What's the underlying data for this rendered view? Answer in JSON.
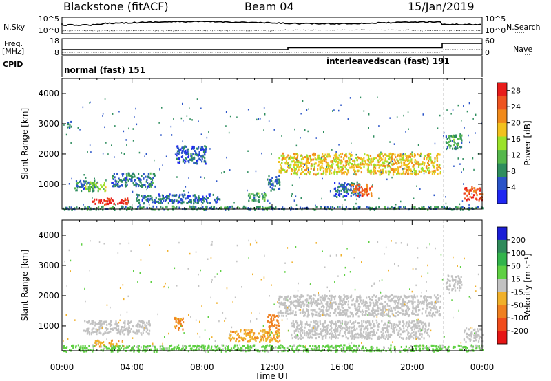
{
  "header": {
    "station": "Blackstone (fitACF)",
    "beam": "Beam 04",
    "date": "15/Jan/2019"
  },
  "top_panels": {
    "nsky_label": "N.Sky",
    "nsky_ticks": [
      "10^5",
      "10^0"
    ],
    "nsearch_label": "N.Search",
    "nsearch_ticks": [
      "10^5",
      "10^0"
    ],
    "freq_label": "Freq.",
    "freq_unit": "[MHz]",
    "freq_ticks": [
      "18",
      "8"
    ],
    "nave_label": "Nave",
    "nave_ticks": [
      "60",
      "0"
    ],
    "cpid_label": "CPID",
    "cpid_segments": [
      {
        "label": "normal (fast) 151",
        "start_hour": 0,
        "end_hour": 21.8
      },
      {
        "label": "interleavedscan (fast) 191",
        "start_hour": 21.8,
        "end_hour": 24
      }
    ]
  },
  "x_axis": {
    "label": "Time UT",
    "ticks": [
      "00:00",
      "04:00",
      "08:00",
      "12:00",
      "16:00",
      "20:00",
      "00:00"
    ],
    "range_hours": [
      0,
      24
    ]
  },
  "y_axis": {
    "label": "Slant Range [km]",
    "ticks": [
      "1000",
      "2000",
      "3000",
      "4000"
    ],
    "range_km": [
      180,
      4500
    ]
  },
  "power_scale": {
    "label": "Power [dB]",
    "ticks": [
      "4",
      "8",
      "12",
      "16",
      "20",
      "24",
      "28"
    ],
    "range": [
      0,
      30
    ],
    "colors": [
      "#1f27f2",
      "#2a54c8",
      "#2e8d5e",
      "#56b84c",
      "#9be22a",
      "#f2c11e",
      "#f08a1b",
      "#ee5420",
      "#e81c1a"
    ]
  },
  "velocity_scale": {
    "label": "Velocity [m s⁻¹]",
    "ticks": [
      "200",
      "100",
      "50",
      "15",
      "-15",
      "-50",
      "-100",
      "-200"
    ],
    "colors": [
      "#1b1ed6",
      "#2f8a5a",
      "#32b44b",
      "#5fd043",
      "#c2c2c2",
      "#f0b02a",
      "#f08020",
      "#f04c1c",
      "#e61515"
    ]
  },
  "chart_data": [
    {
      "type": "heatmap",
      "title": "Power",
      "xlabel": "Time UT",
      "ylabel": "Slant Range [km]",
      "xlim_hours": [
        0,
        24
      ],
      "ylim_km": [
        180,
        4500
      ],
      "colorbar": {
        "label": "Power [dB]",
        "ticks": [
          4,
          8,
          12,
          16,
          20,
          24,
          28
        ]
      },
      "echo_regions": [
        {
          "t_start": 0.2,
          "t_end": 0.5,
          "range_start": 2900,
          "range_end": 3100,
          "power_db": 6
        },
        {
          "t_start": 0.7,
          "t_end": 1.9,
          "range_start": 800,
          "range_end": 1150,
          "power_db": 7
        },
        {
          "t_start": 1.3,
          "t_end": 2.5,
          "range_start": 800,
          "range_end": 1100,
          "power_db": 14
        },
        {
          "t_start": 1.7,
          "t_end": 3.8,
          "range_start": 350,
          "range_end": 560,
          "power_db": 28
        },
        {
          "t_start": 2.8,
          "t_end": 5.3,
          "range_start": 950,
          "range_end": 1400,
          "power_db": 7
        },
        {
          "t_start": 4.2,
          "t_end": 9.0,
          "range_start": 400,
          "range_end": 700,
          "power_db": 6
        },
        {
          "t_start": 6.5,
          "t_end": 8.2,
          "range_start": 1700,
          "range_end": 2300,
          "power_db": 5
        },
        {
          "t_start": 10.6,
          "t_end": 11.6,
          "range_start": 450,
          "range_end": 750,
          "power_db": 10
        },
        {
          "t_start": 11.7,
          "t_end": 12.4,
          "range_start": 800,
          "range_end": 1300,
          "power_db": 6
        },
        {
          "t_start": 12.3,
          "t_end": 21.6,
          "range_start": 1350,
          "range_end": 2050,
          "power_db": 18
        },
        {
          "t_start": 15.5,
          "t_end": 17.0,
          "range_start": 600,
          "range_end": 1100,
          "power_db": 6
        },
        {
          "t_start": 16.5,
          "t_end": 17.7,
          "range_start": 650,
          "range_end": 1050,
          "power_db": 24
        },
        {
          "t_start": 21.9,
          "t_end": 22.8,
          "range_start": 2200,
          "range_end": 2700,
          "power_db": 10
        },
        {
          "t_start": 22.9,
          "t_end": 24.0,
          "range_start": 500,
          "range_end": 950,
          "power_db": 26
        },
        {
          "t_start": 0.0,
          "t_end": 24.0,
          "range_start": 180,
          "range_end": 300,
          "power_db": 8
        }
      ]
    },
    {
      "type": "heatmap",
      "title": "Velocity",
      "xlabel": "Time UT",
      "ylabel": "Slant Range [km]",
      "xlim_hours": [
        0,
        24
      ],
      "ylim_km": [
        180,
        4500
      ],
      "colorbar": {
        "label": "Velocity [m s⁻¹]",
        "ticks": [
          200,
          100,
          50,
          15,
          -15,
          -50,
          -100,
          -200
        ]
      },
      "echo_regions": [
        {
          "t_start": 1.2,
          "t_end": 5.0,
          "range_start": 750,
          "range_end": 1200,
          "velocity": 0
        },
        {
          "t_start": 1.8,
          "t_end": 3.5,
          "range_start": 350,
          "range_end": 550,
          "velocity": -40
        },
        {
          "t_start": 6.4,
          "t_end": 7.0,
          "range_start": 900,
          "range_end": 1300,
          "velocity": -60
        },
        {
          "t_start": 9.5,
          "t_end": 12.4,
          "range_start": 500,
          "range_end": 900,
          "velocity": -40
        },
        {
          "t_start": 11.7,
          "t_end": 12.4,
          "range_start": 900,
          "range_end": 1400,
          "velocity": -80
        },
        {
          "t_start": 12.3,
          "t_end": 21.6,
          "range_start": 1350,
          "range_end": 2050,
          "velocity": 0
        },
        {
          "t_start": 13.0,
          "t_end": 21.0,
          "range_start": 600,
          "range_end": 1200,
          "velocity": 0
        },
        {
          "t_start": 21.9,
          "t_end": 22.8,
          "range_start": 2200,
          "range_end": 2700,
          "velocity": 0
        },
        {
          "t_start": 22.9,
          "t_end": 24.0,
          "range_start": 500,
          "range_end": 950,
          "velocity": 0
        },
        {
          "t_start": 0.0,
          "t_end": 24.0,
          "range_start": 180,
          "range_end": 400,
          "velocity": 30
        }
      ]
    }
  ]
}
